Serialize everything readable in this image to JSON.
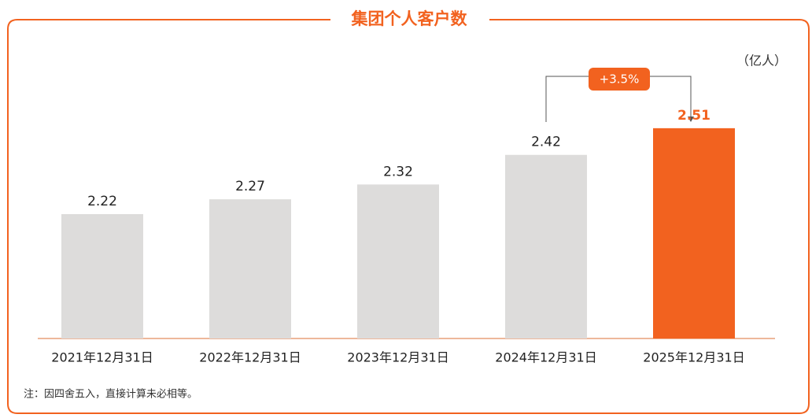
{
  "chart_data": {
    "type": "bar",
    "title": "集团个人客户数",
    "unit": "（亿人）",
    "categories": [
      "2021年12月31日",
      "2022年12月31日",
      "2023年12月31日",
      "2024年12月31日",
      "2025年12月31日"
    ],
    "values": [
      2.22,
      2.27,
      2.32,
      2.42,
      2.51
    ],
    "colors": [
      "#dddcdb",
      "#dddcdb",
      "#dddcdb",
      "#dddcdb",
      "#f2621f"
    ],
    "label_colors": [
      "#222222",
      "#222222",
      "#222222",
      "#222222",
      "#f2621f"
    ],
    "ylim": [
      1.8,
      2.6
    ],
    "annotation": "+3.5%",
    "note": "注：因四舍五入，直接计算未必相等。"
  }
}
